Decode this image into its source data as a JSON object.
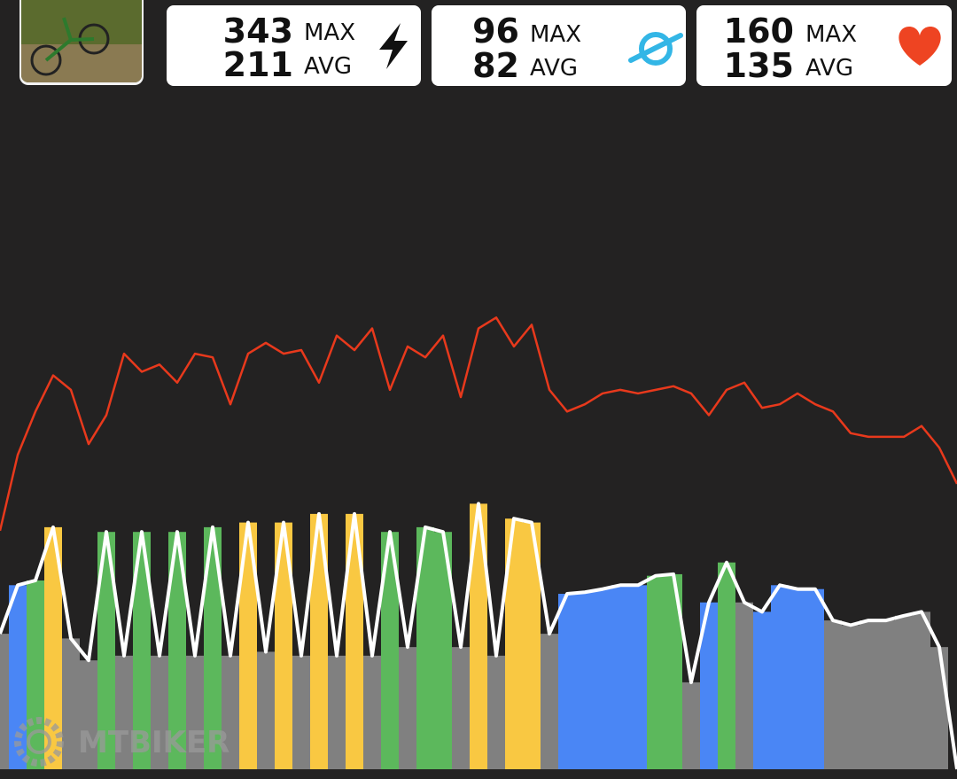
{
  "stats": [
    {
      "max": 343,
      "max_label": "MAX",
      "avg": 211,
      "avg_label": "AVG"
    },
    {
      "max": 96,
      "max_label": "MAX",
      "avg": 82,
      "avg_label": "AVG"
    },
    {
      "max": 160,
      "max_label": "MAX",
      "avg": 135,
      "avg_label": "AVG"
    }
  ],
  "watermark": "MTBIKER",
  "chart_data": {
    "type": "area-line",
    "series": [
      {
        "name": "Power",
        "color": "#ffffff",
        "values": [
          173,
          235,
          241,
          309,
          167,
          139,
          303,
          145,
          303,
          145,
          303,
          145,
          309,
          145,
          315,
          150,
          315,
          145,
          326,
          145,
          326,
          145,
          303,
          156,
          309,
          303,
          156,
          339,
          145,
          320,
          315,
          173,
          224,
          226,
          230,
          235,
          235,
          247,
          249,
          111,
          213,
          264,
          213,
          201,
          235,
          230,
          230,
          190,
          184,
          190,
          190,
          196,
          201,
          156,
          0
        ],
        "colors": [
          "#808080",
          "#4a86f5",
          "#5cb85c",
          "#f9c842",
          "#808080",
          "#808080",
          "#5cb85c",
          "#808080",
          "#5cb85c",
          "#808080",
          "#5cb85c",
          "#808080",
          "#5cb85c",
          "#808080",
          "#f9c842",
          "#808080",
          "#f9c842",
          "#808080",
          "#f9c842",
          "#808080",
          "#f9c842",
          "#808080",
          "#5cb85c",
          "#808080",
          "#5cb85c",
          "#5cb85c",
          "#808080",
          "#f9c842",
          "#808080",
          "#f9c842",
          "#f9c842",
          "#808080",
          "#4a86f5",
          "#4a86f5",
          "#4a86f5",
          "#4a86f5",
          "#4a86f5",
          "#5cb85c",
          "#5cb85c",
          "#808080",
          "#4a86f5",
          "#5cb85c",
          "#808080",
          "#4a86f5",
          "#4a86f5",
          "#4a86f5",
          "#4a86f5",
          "#808080",
          "#808080",
          "#808080",
          "#808080",
          "#808080",
          "#808080",
          "#808080",
          "#808080"
        ]
      },
      {
        "name": "Heart rate",
        "color": "#e8391c",
        "axis": "y2",
        "values": [
          100,
          121,
          133,
          143,
          139,
          124,
          132,
          149,
          144,
          146,
          141,
          149,
          148,
          135,
          149,
          152,
          149,
          150,
          141,
          154,
          150,
          156,
          139,
          151,
          148,
          154,
          137,
          156,
          159,
          151,
          157,
          139,
          133,
          135,
          138,
          139,
          138,
          139,
          140,
          138,
          132,
          139,
          141,
          134,
          135,
          138,
          135,
          133,
          127,
          126,
          126,
          126,
          129,
          123,
          113
        ]
      }
    ],
    "ylim": [
      0,
      835
    ],
    "y2lim": [
      34,
      215
    ]
  }
}
